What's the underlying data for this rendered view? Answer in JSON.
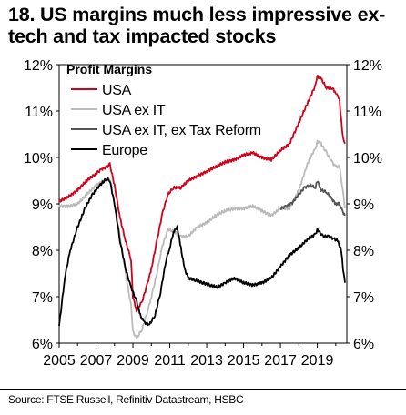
{
  "title": "18. US margins much less impressive ex-tech and tax impacted stocks",
  "source": "Source: FTSE Russell, Refinitiv Datastream, HSBC",
  "chart_data": {
    "type": "line",
    "legend_title": "Profit Margins",
    "legend_position": "top-left",
    "grid": false,
    "xlim": [
      2005,
      2020.6
    ],
    "ylim": [
      6,
      12
    ],
    "x_ticks": [
      "2005",
      "2007",
      "2009",
      "2011",
      "2013",
      "2015",
      "2017",
      "2019"
    ],
    "y_ticks": [
      "6%",
      "7%",
      "8%",
      "9%",
      "10%",
      "11%",
      "12%"
    ],
    "series": [
      {
        "name": "USA",
        "color": "#d0021b",
        "x": [
          2005,
          2005.5,
          2006,
          2006.5,
          2007,
          2007.3,
          2007.6,
          2007.75,
          2008,
          2008.3,
          2008.6,
          2008.9,
          2009.0,
          2009.2,
          2009.5,
          2009.8,
          2010,
          2010.3,
          2010.6,
          2010.9,
          2011.2,
          2011.6,
          2012,
          2012.5,
          2013,
          2013.5,
          2014,
          2014.5,
          2015,
          2015.5,
          2016,
          2016.5,
          2017,
          2017.5,
          2018,
          2018.5,
          2018.9,
          2019.0,
          2019.2,
          2019.5,
          2019.8,
          2020.0,
          2020.1,
          2020.2,
          2020.3,
          2020.4,
          2020.5
        ],
        "y": [
          9.05,
          9.15,
          9.3,
          9.5,
          9.65,
          9.75,
          9.8,
          9.85,
          9.4,
          8.7,
          8.2,
          7.8,
          7.0,
          6.7,
          6.9,
          7.3,
          7.6,
          8.2,
          8.8,
          9.2,
          9.35,
          9.35,
          9.5,
          9.6,
          9.7,
          9.8,
          9.9,
          9.95,
          10.05,
          10.1,
          10.0,
          9.95,
          10.15,
          10.3,
          10.75,
          11.2,
          11.55,
          11.75,
          11.7,
          11.5,
          11.5,
          11.4,
          11.35,
          11.25,
          10.8,
          10.4,
          10.3
        ]
      },
      {
        "name": "USA ex IT",
        "color": "#bbbbbb",
        "x": [
          2005,
          2005.5,
          2006,
          2006.5,
          2007,
          2007.4,
          2007.75,
          2008,
          2008.3,
          2008.6,
          2008.9,
          2009.0,
          2009.2,
          2009.5,
          2009.8,
          2010,
          2010.3,
          2010.6,
          2010.9,
          2011.2,
          2011.6,
          2012,
          2012.5,
          2013,
          2013.5,
          2014,
          2014.5,
          2015,
          2015.5,
          2016,
          2016.5,
          2017,
          2017.5,
          2018,
          2018.5,
          2018.9,
          2019.0,
          2019.2,
          2019.5,
          2019.8,
          2020.0,
          2020.2,
          2020.35,
          2020.5
        ],
        "y": [
          8.95,
          8.95,
          9.0,
          9.2,
          9.4,
          9.5,
          9.55,
          9.0,
          8.3,
          7.5,
          6.8,
          6.25,
          6.1,
          6.3,
          6.7,
          7.0,
          7.5,
          8.1,
          8.45,
          8.4,
          8.3,
          8.3,
          8.5,
          8.6,
          8.75,
          8.85,
          8.9,
          8.9,
          8.95,
          8.85,
          8.75,
          8.9,
          8.9,
          9.3,
          9.9,
          10.2,
          10.35,
          10.3,
          10.1,
          9.9,
          9.8,
          9.8,
          9.4,
          8.9
        ]
      },
      {
        "name": "USA ex IT, ex Tax Reform",
        "color": "#555555",
        "x": [
          2017.0,
          2017.3,
          2017.6,
          2018,
          2018.3,
          2018.6,
          2018.9,
          2019.0,
          2019.2,
          2019.5,
          2019.8,
          2020.0,
          2020.2,
          2020.35,
          2020.5
        ],
        "y": [
          8.9,
          8.95,
          9.0,
          9.2,
          9.35,
          9.4,
          9.35,
          9.5,
          9.3,
          9.25,
          9.1,
          9.0,
          9.0,
          8.85,
          8.75
        ]
      },
      {
        "name": "Europe",
        "color": "#000000",
        "x": [
          2005,
          2005.1,
          2005.3,
          2005.6,
          2006,
          2006.4,
          2006.8,
          2007.2,
          2007.6,
          2007.75,
          2008,
          2008.3,
          2008.6,
          2008.9,
          2009.2,
          2009.4,
          2009.6,
          2009.9,
          2010.2,
          2010.5,
          2010.8,
          2011.0,
          2011.2,
          2011.4,
          2011.6,
          2011.8,
          2012,
          2012.4,
          2012.8,
          2013.2,
          2013.6,
          2014,
          2014.5,
          2015,
          2015.5,
          2016,
          2016.5,
          2017,
          2017.5,
          2018,
          2018.5,
          2018.9,
          2019.0,
          2019.3,
          2019.6,
          2019.9,
          2020.1,
          2020.3,
          2020.4,
          2020.5
        ],
        "y": [
          6.4,
          6.7,
          7.4,
          8.0,
          8.5,
          8.9,
          9.2,
          9.4,
          9.55,
          9.5,
          9.0,
          8.2,
          7.6,
          7.2,
          6.9,
          6.6,
          6.45,
          6.4,
          6.6,
          7.1,
          7.8,
          8.05,
          8.4,
          8.5,
          8.05,
          7.6,
          7.4,
          7.35,
          7.3,
          7.25,
          7.2,
          7.3,
          7.4,
          7.3,
          7.25,
          7.3,
          7.4,
          7.65,
          7.9,
          8.05,
          8.25,
          8.35,
          8.45,
          8.3,
          8.3,
          8.25,
          8.2,
          8.0,
          7.6,
          7.3
        ]
      }
    ]
  }
}
